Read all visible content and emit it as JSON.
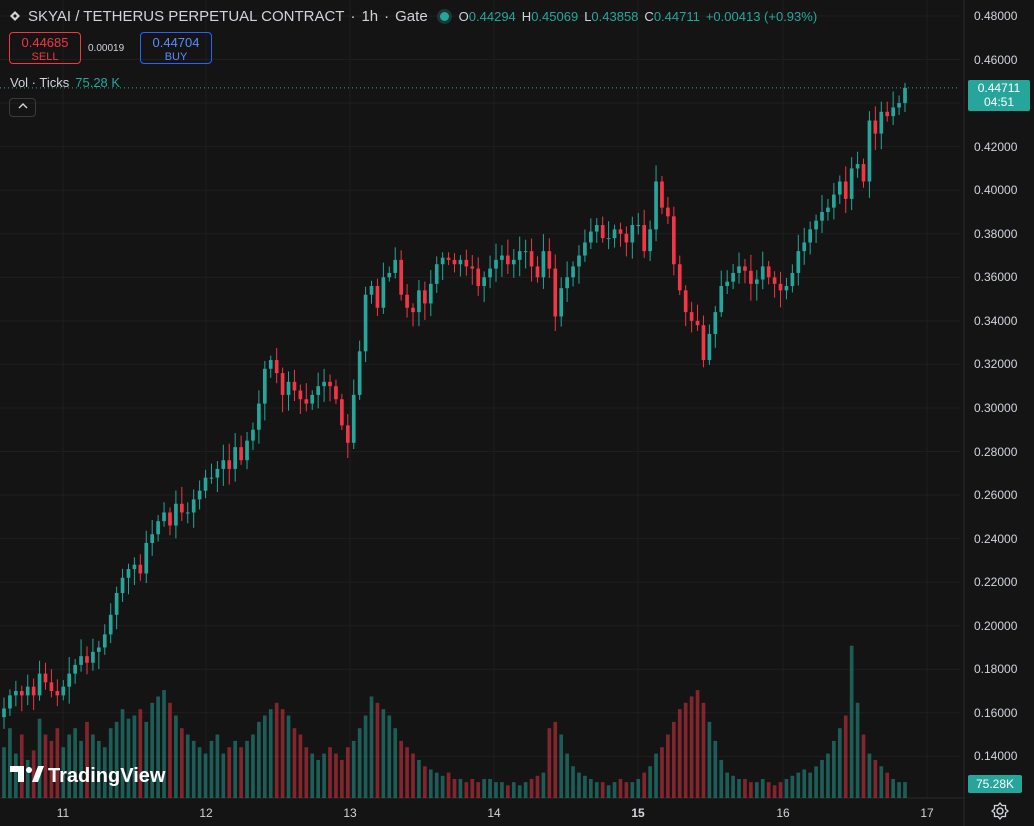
{
  "header": {
    "symbol": "SKYAI / TETHERUS PERPETUAL CONTRACT",
    "interval": "1h",
    "exchange": "Gate",
    "open_key": "O",
    "open": "0.44294",
    "high_key": "H",
    "high": "0.45069",
    "low_key": "L",
    "low": "0.43858",
    "close_key": "C",
    "close": "0.44711",
    "change": "+0.00413 (+0.93%)",
    "status_color": "#26a69a"
  },
  "trade": {
    "sell_price": "0.44685",
    "sell_label": "SELL",
    "spread": "0.00019",
    "buy_price": "0.44704",
    "buy_label": "BUY"
  },
  "volume_legend": {
    "label": "Vol · Ticks",
    "value": "75.28 K"
  },
  "price_badge": {
    "price": "0.44711",
    "countdown": "04:51"
  },
  "volume_badge": "75.28K",
  "logo_text": "TradingView",
  "colors": {
    "up": "#26a69a",
    "down": "#f23645",
    "background": "#141414"
  },
  "chart_data": {
    "type": "candlestick",
    "y_ticks": [
      "0.48000",
      "0.46000",
      "0.44000",
      "0.42000",
      "0.40000",
      "0.38000",
      "0.36000",
      "0.34000",
      "0.32000",
      "0.30000",
      "0.28000",
      "0.26000",
      "0.24000",
      "0.22000",
      "0.20000",
      "0.18000",
      "0.16000",
      "0.14000"
    ],
    "ylim": [
      0.13,
      0.48
    ],
    "x_ticks": [
      {
        "label": "11",
        "bold": false
      },
      {
        "label": "12",
        "bold": false
      },
      {
        "label": "13",
        "bold": false
      },
      {
        "label": "14",
        "bold": false
      },
      {
        "label": "15",
        "bold": true
      },
      {
        "label": "16",
        "bold": false
      },
      {
        "label": "17",
        "bold": false
      }
    ],
    "close_path": [
      0.162,
      0.168,
      0.17,
      0.168,
      0.172,
      0.168,
      0.178,
      0.174,
      0.17,
      0.168,
      0.172,
      0.178,
      0.182,
      0.186,
      0.183,
      0.188,
      0.19,
      0.196,
      0.205,
      0.215,
      0.222,
      0.226,
      0.228,
      0.224,
      0.238,
      0.242,
      0.248,
      0.252,
      0.246,
      0.256,
      0.252,
      0.252,
      0.258,
      0.262,
      0.268,
      0.268,
      0.272,
      0.276,
      0.272,
      0.282,
      0.276,
      0.285,
      0.29,
      0.302,
      0.318,
      0.322,
      0.316,
      0.306,
      0.312,
      0.308,
      0.304,
      0.302,
      0.306,
      0.31,
      0.312,
      0.31,
      0.304,
      0.292,
      0.284,
      0.306,
      0.326,
      0.352,
      0.356,
      0.346,
      0.36,
      0.362,
      0.368,
      0.352,
      0.346,
      0.344,
      0.354,
      0.348,
      0.357,
      0.366,
      0.369,
      0.368,
      0.366,
      0.368,
      0.365,
      0.364,
      0.356,
      0.36,
      0.364,
      0.368,
      0.37,
      0.366,
      0.368,
      0.372,
      0.372,
      0.365,
      0.36,
      0.372,
      0.364,
      0.342,
      0.355,
      0.36,
      0.365,
      0.37,
      0.376,
      0.381,
      0.384,
      0.378,
      0.378,
      0.382,
      0.38,
      0.376,
      0.384,
      0.384,
      0.372,
      0.382,
      0.404,
      0.392,
      0.388,
      0.366,
      0.354,
      0.344,
      0.34,
      0.338,
      0.322,
      0.334,
      0.344,
      0.356,
      0.358,
      0.362,
      0.365,
      0.363,
      0.357,
      0.359,
      0.365,
      0.36,
      0.357,
      0.354,
      0.356,
      0.362,
      0.372,
      0.376,
      0.382,
      0.386,
      0.39,
      0.392,
      0.398,
      0.404,
      0.396,
      0.41,
      0.412,
      0.404,
      0.432,
      0.426,
      0.436,
      0.434,
      0.438,
      0.44,
      0.447
    ],
    "volume": [
      16,
      22,
      14,
      20,
      12,
      15,
      25,
      20,
      18,
      22,
      16,
      20,
      22,
      18,
      24,
      20,
      18,
      16,
      22,
      24,
      28,
      25,
      26,
      28,
      24,
      30,
      32,
      34,
      30,
      26,
      22,
      20,
      18,
      16,
      14,
      18,
      20,
      14,
      16,
      18,
      16,
      18,
      20,
      24,
      26,
      28,
      30,
      28,
      26,
      22,
      20,
      16,
      14,
      12,
      14,
      16,
      14,
      12,
      16,
      18,
      22,
      26,
      32,
      30,
      28,
      26,
      22,
      18,
      16,
      14,
      12,
      10,
      9,
      8,
      7,
      8,
      6,
      6,
      5,
      6,
      5,
      6,
      6,
      5,
      5,
      4,
      5,
      4,
      5,
      6,
      7,
      8,
      22,
      24,
      20,
      14,
      10,
      8,
      7,
      6,
      5,
      5,
      4,
      5,
      6,
      5,
      5,
      6,
      8,
      10,
      14,
      16,
      20,
      24,
      28,
      30,
      32,
      34,
      30,
      24,
      18,
      12,
      8,
      7,
      6,
      6,
      5,
      5,
      6,
      5,
      4,
      5,
      6,
      7,
      8,
      9,
      8,
      10,
      12,
      14,
      18,
      22,
      26,
      48,
      30,
      20,
      14,
      12,
      10,
      8,
      6
    ],
    "volume_max": 52
  }
}
